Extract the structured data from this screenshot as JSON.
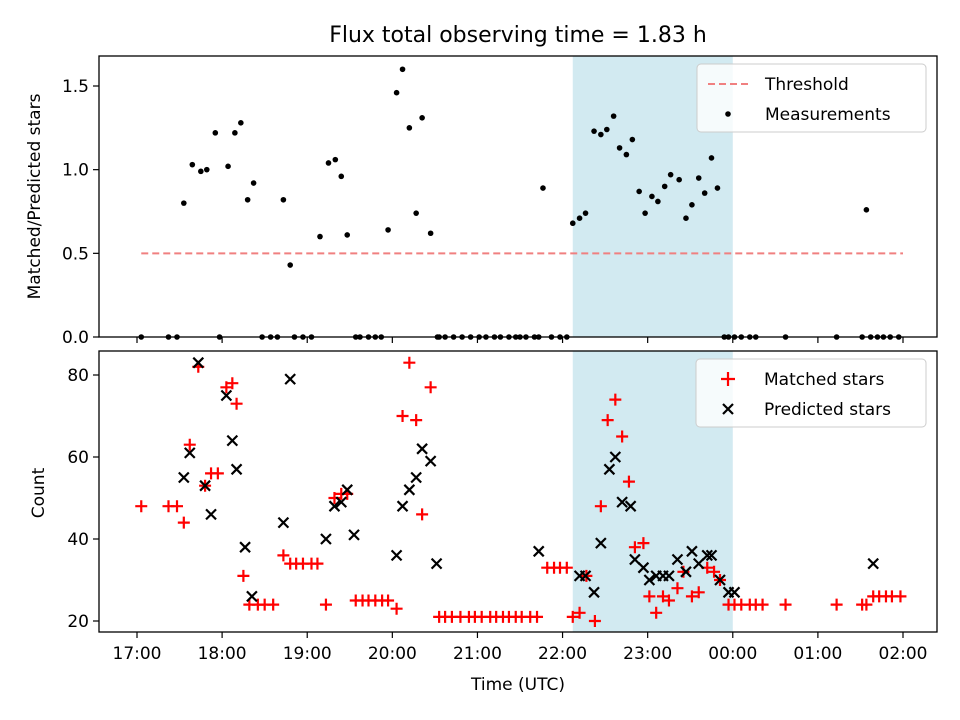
{
  "chart_data": [
    {
      "type": "scatter",
      "title": "Flux total observing time = 1.83 h",
      "xlabel": "",
      "ylabel": "Matched/Predicted stars",
      "x_unit": "hours after 17:00 UTC (17:00 to 02:00 next day)",
      "xlim": [
        -0.5,
        9.4
      ],
      "ylim": [
        0,
        1.68
      ],
      "yticks": [
        "0.0",
        "0.5",
        "1.0",
        "1.5"
      ],
      "shaded_span": {
        "from": 5.12,
        "to": 7.0,
        "color": "#add8e6"
      },
      "legend": {
        "position": "upper right",
        "entries": [
          "Threshold",
          "Measurements"
        ]
      },
      "series": [
        {
          "name": "Threshold",
          "style": "dashed",
          "color": "#f08080",
          "x": [
            0.05,
            9.0
          ],
          "y": [
            0.5,
            0.5
          ]
        },
        {
          "name": "Measurements",
          "style": "points",
          "color": "#000000",
          "x": [
            0.05,
            0.37,
            0.47,
            0.55,
            0.65,
            0.75,
            0.82,
            0.92,
            0.97,
            1.07,
            1.15,
            1.22,
            1.3,
            1.37,
            1.47,
            1.57,
            1.65,
            1.72,
            1.8,
            1.85,
            1.95,
            2.05,
            2.15,
            2.25,
            2.33,
            2.4,
            2.47,
            2.57,
            2.62,
            2.72,
            2.8,
            2.87,
            2.95,
            3.05,
            3.12,
            3.2,
            3.28,
            3.35,
            3.45,
            3.53,
            3.55,
            3.62,
            3.72,
            3.82,
            3.92,
            4.02,
            4.1,
            4.2,
            4.27,
            4.37,
            4.45,
            4.5,
            4.57,
            4.67,
            4.72,
            4.77,
            4.87,
            4.97,
            5.05,
            5.12,
            5.2,
            5.27,
            5.37,
            5.45,
            5.52,
            5.6,
            5.67,
            5.75,
            5.82,
            5.9,
            5.97,
            6.05,
            6.12,
            6.2,
            6.27,
            6.37,
            6.45,
            6.52,
            6.6,
            6.67,
            6.75,
            6.82,
            6.9,
            6.95,
            7.02,
            7.1,
            7.2,
            7.27,
            7.62,
            8.22,
            8.52,
            8.57,
            8.62,
            8.7,
            8.77,
            8.85,
            8.95
          ],
          "y": [
            0.0,
            0.0,
            0.0,
            0.8,
            1.03,
            0.99,
            1.0,
            1.22,
            0.0,
            1.02,
            1.22,
            1.28,
            0.82,
            0.92,
            0.0,
            0.0,
            0.0,
            0.82,
            0.43,
            0.0,
            0.0,
            0.0,
            0.6,
            1.04,
            1.06,
            0.96,
            0.61,
            0.0,
            0.0,
            0.0,
            0.0,
            0.0,
            0.64,
            1.46,
            1.6,
            1.25,
            0.74,
            1.31,
            0.62,
            0.0,
            0.0,
            0.0,
            0.0,
            0.0,
            0.0,
            0.0,
            0.0,
            0.0,
            0.0,
            0.0,
            0.0,
            0.0,
            0.0,
            0.0,
            0.0,
            0.89,
            0.0,
            0.0,
            0.0,
            0.68,
            0.71,
            0.74,
            1.23,
            1.21,
            1.24,
            1.32,
            1.13,
            1.09,
            1.18,
            0.87,
            0.74,
            0.84,
            0.81,
            0.9,
            0.97,
            0.94,
            0.71,
            0.79,
            0.95,
            0.86,
            1.07,
            0.89,
            0.0,
            0.0,
            0.0,
            0.0,
            0.0,
            0.0,
            0.0,
            0.0,
            0.0,
            0.76,
            0.0,
            0.0,
            0.0,
            0.0,
            0.0
          ]
        }
      ]
    },
    {
      "type": "scatter",
      "title": "",
      "xlabel": "Time (UTC)",
      "ylabel": "Count",
      "x_unit": "hours after 17:00 UTC (17:00 to 02:00 next day)",
      "xlim": [
        -0.5,
        9.4
      ],
      "ylim": [
        16,
        86
      ],
      "xticks": [
        "17:00",
        "18:00",
        "19:00",
        "20:00",
        "21:00",
        "22:00",
        "23:00",
        "00:00",
        "01:00",
        "02:00"
      ],
      "yticks": [
        "20",
        "40",
        "60",
        "80"
      ],
      "shaded_span": {
        "from": 5.12,
        "to": 7.0,
        "color": "#add8e6"
      },
      "legend": {
        "position": "upper right",
        "entries": [
          "Matched stars",
          "Predicted stars"
        ]
      },
      "series": [
        {
          "name": "Matched stars",
          "marker": "+",
          "color": "#ff0000",
          "x": [
            0.05,
            0.37,
            0.47,
            0.55,
            0.62,
            0.72,
            0.8,
            0.87,
            0.95,
            1.05,
            1.12,
            1.17,
            1.25,
            1.32,
            1.42,
            1.5,
            1.6,
            1.72,
            1.8,
            1.87,
            1.95,
            2.05,
            2.12,
            2.22,
            2.32,
            2.4,
            2.47,
            2.57,
            2.65,
            2.72,
            2.8,
            2.88,
            2.95,
            3.05,
            3.12,
            3.2,
            3.28,
            3.35,
            3.45,
            3.55,
            3.62,
            3.7,
            3.8,
            3.9,
            3.97,
            4.05,
            4.15,
            4.22,
            4.3,
            4.37,
            4.45,
            4.52,
            4.62,
            4.7,
            4.82,
            4.9,
            4.97,
            5.05,
            5.12,
            5.2,
            5.28,
            5.38,
            5.45,
            5.53,
            5.62,
            5.7,
            5.78,
            5.85,
            5.95,
            6.02,
            6.1,
            6.18,
            6.25,
            6.35,
            6.42,
            6.52,
            6.6,
            6.7,
            6.78,
            6.85,
            6.95,
            7.02,
            7.1,
            7.2,
            7.27,
            7.35,
            7.62,
            8.22,
            8.52,
            8.57,
            8.65,
            8.72,
            8.8,
            8.87,
            8.97
          ],
          "y": [
            48,
            48,
            48,
            44,
            63,
            82,
            53,
            56,
            56,
            77,
            78,
            73,
            31,
            24,
            24,
            24,
            24,
            36,
            34,
            34,
            34,
            34,
            34,
            24,
            50,
            51,
            51,
            25,
            25,
            25,
            25,
            25,
            25,
            23,
            70,
            83,
            69,
            46,
            77,
            21,
            21,
            21,
            21,
            21,
            21,
            21,
            21,
            21,
            21,
            21,
            21,
            21,
            21,
            21,
            33,
            33,
            33,
            33,
            21,
            22,
            31,
            20,
            48,
            69,
            74,
            65,
            54,
            38,
            39,
            26,
            22,
            26,
            25,
            28,
            32,
            26,
            27,
            33,
            32,
            30,
            24,
            24,
            24,
            24,
            24,
            24,
            24,
            24,
            24,
            24,
            26,
            26,
            26,
            26,
            26
          ]
        },
        {
          "name": "Predicted stars",
          "marker": "x",
          "color": "#000000",
          "x": [
            0.55,
            0.62,
            0.72,
            0.8,
            0.87,
            1.05,
            1.12,
            1.17,
            1.27,
            1.35,
            1.72,
            1.8,
            2.22,
            2.32,
            2.4,
            2.47,
            2.55,
            3.05,
            3.12,
            3.2,
            3.28,
            3.35,
            3.45,
            3.52,
            4.72,
            5.2,
            5.27,
            5.37,
            5.45,
            5.55,
            5.62,
            5.7,
            5.8,
            5.85,
            5.95,
            6.02,
            6.1,
            6.18,
            6.25,
            6.35,
            6.45,
            6.52,
            6.6,
            6.7,
            6.75,
            6.85,
            6.95,
            7.02,
            8.65
          ],
          "y": [
            55,
            61,
            83,
            53,
            46,
            75,
            64,
            57,
            38,
            26,
            44,
            79,
            40,
            48,
            49,
            52,
            41,
            36,
            48,
            52,
            55,
            62,
            59,
            34,
            37,
            31,
            31,
            27,
            39,
            57,
            60,
            49,
            48,
            35,
            33,
            30,
            31,
            31,
            31,
            35,
            32,
            37,
            34,
            36,
            36,
            30,
            27,
            27,
            34
          ]
        }
      ]
    }
  ]
}
